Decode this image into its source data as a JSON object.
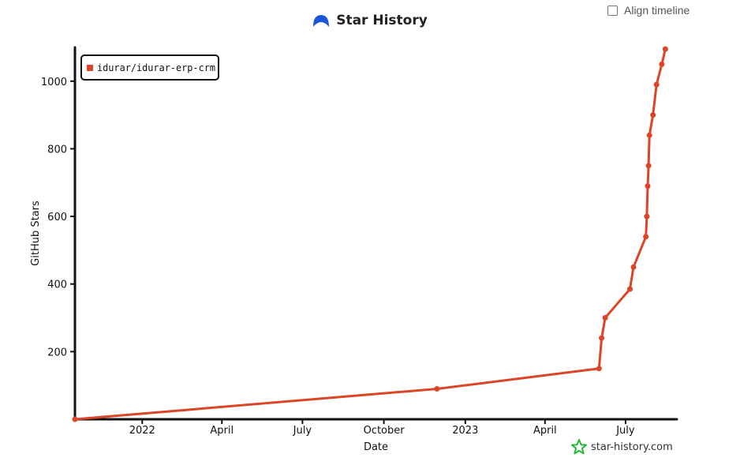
{
  "header": {
    "title": "Star History",
    "align_timeline_label": "Align timeline",
    "align_timeline_checked": false
  },
  "watermark": {
    "text": "star-history.com"
  },
  "colors": {
    "series": "#dd4528",
    "logo": "#1a56db",
    "watermark_icon": "#22bb33",
    "axis": "#111111"
  },
  "chart_data": {
    "type": "line",
    "xlabel": "Date",
    "ylabel": "GitHub Stars",
    "x_axis": "date",
    "xlim": [
      "2021-10-17",
      "2023-08-28"
    ],
    "ylim": [
      0,
      1100
    ],
    "y_ticks": [
      200,
      400,
      600,
      800,
      1000
    ],
    "x_ticks": [
      {
        "label": "2022",
        "date": "2022-01-01"
      },
      {
        "label": "April",
        "date": "2022-04-01"
      },
      {
        "label": "July",
        "date": "2022-07-01"
      },
      {
        "label": "October",
        "date": "2022-10-01"
      },
      {
        "label": "2023",
        "date": "2023-01-01"
      },
      {
        "label": "April",
        "date": "2023-04-01"
      },
      {
        "label": "July",
        "date": "2023-07-01"
      }
    ],
    "legend_position": "top-left",
    "series": [
      {
        "name": "idurar/idurar-erp-crm",
        "points": [
          {
            "x": "2021-10-17",
            "y": 0
          },
          {
            "x": "2022-11-30",
            "y": 90
          },
          {
            "x": "2023-06-01",
            "y": 150
          },
          {
            "x": "2023-06-04",
            "y": 240
          },
          {
            "x": "2023-06-08",
            "y": 300
          },
          {
            "x": "2023-07-06",
            "y": 385
          },
          {
            "x": "2023-07-10",
            "y": 450
          },
          {
            "x": "2023-07-24",
            "y": 540
          },
          {
            "x": "2023-07-25",
            "y": 600
          },
          {
            "x": "2023-07-26",
            "y": 690
          },
          {
            "x": "2023-07-27",
            "y": 750
          },
          {
            "x": "2023-07-28",
            "y": 840
          },
          {
            "x": "2023-08-01",
            "y": 900
          },
          {
            "x": "2023-08-05",
            "y": 990
          },
          {
            "x": "2023-08-11",
            "y": 1050
          },
          {
            "x": "2023-08-15",
            "y": 1095
          }
        ]
      }
    ]
  }
}
